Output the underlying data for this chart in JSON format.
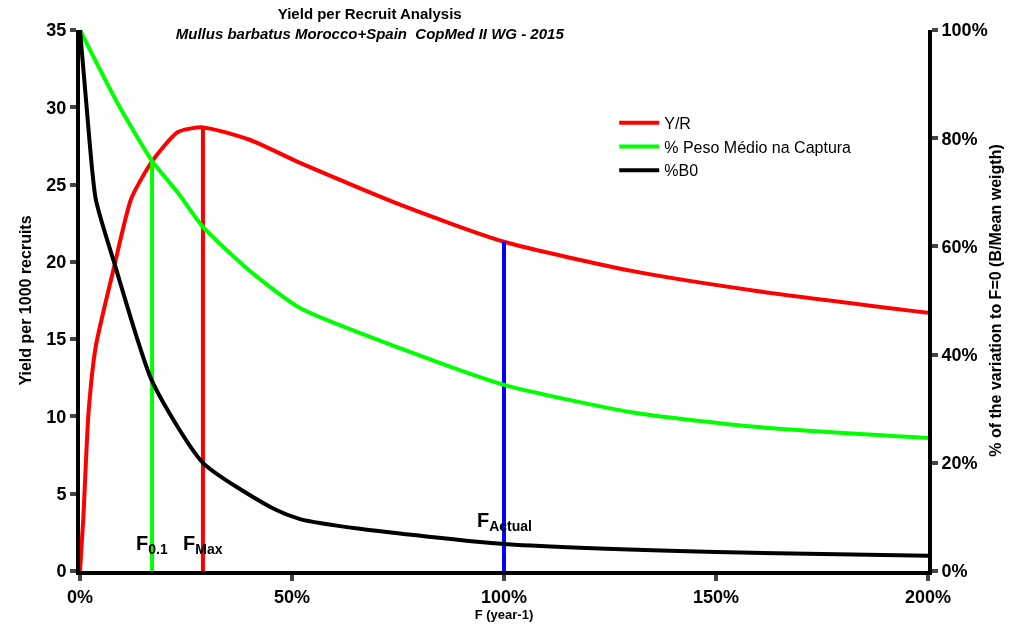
{
  "chart_data": {
    "type": "line",
    "title": "Yield per Recruit Analysis",
    "subtitle": "Mullus barbatus Morocco+Spain  CopMed II WG - 2015",
    "xlabel": "F (year-1)",
    "ylabel": "Yield per 1000 recruits",
    "y2label": "% of the variation to F=0 (B/Mean weigth)",
    "x": [
      0,
      0.0076,
      0.016,
      0.02,
      0.037,
      0.079,
      0.121,
      0.17,
      0.231,
      0.29,
      0.4,
      0.519,
      0.66,
      0.764,
      1.0,
      1.304,
      1.5,
      1.6,
      2.0
    ],
    "series": [
      {
        "name": "Y/R",
        "color": "#ff0000",
        "values": [
          0,
          3.3,
          null,
          10.2,
          14.5,
          19.5,
          24.1,
          26.5,
          28.4,
          28.7,
          27.9,
          26.4,
          null,
          23.6,
          21.3,
          19.4,
          null,
          18.1,
          16.7
        ]
      },
      {
        "name": "% Peso Médio na Captura",
        "color": "#00ff00",
        "axis": "y2",
        "x": [
          0,
          0.087,
          0.17,
          0.231,
          0.29,
          0.4,
          0.519,
          0.764,
          1.0,
          1.304,
          1.6,
          2.0
        ],
        "values": [
          100,
          86.7,
          75.8,
          69.9,
          63.6,
          55.5,
          48.6,
          40.9,
          34.4,
          29.3,
          26.6,
          24.6
        ]
      },
      {
        "name": "%B0",
        "color": "#000000",
        "axis": "y2",
        "x": [
          0,
          0.016,
          0.037,
          0.083,
          0.17,
          0.29,
          0.457,
          0.519,
          0.66,
          1.0,
          1.5,
          2.0
        ],
        "values": [
          100,
          85.4,
          68.8,
          56.4,
          35.1,
          20.0,
          11.5,
          9.6,
          7.8,
          5.0,
          3.5,
          2.8
        ]
      },
      {
        "color": "#00ff00",
        "x": [
          0.17,
          0.17
        ],
        "values": [
          0,
          26.5
        ]
      },
      {
        "color": "#ff0000",
        "x": [
          0.29,
          0.29
        ],
        "values": [
          0,
          28.7
        ]
      },
      {
        "color": "#0000ff",
        "x": [
          1.0,
          1.0
        ],
        "values": [
          0,
          21.3
        ]
      }
    ],
    "annotations": [
      {
        "text": "F$_{0.1}$",
        "x": 0.17,
        "y": 1.7
      },
      {
        "text": "F$_{Max}$",
        "x": 0.29,
        "y": 1.7
      },
      {
        "text": "F$_{Actual}$",
        "x": 1.0,
        "y": 3.2
      }
    ],
    "xlim": [
      0,
      2
    ],
    "xticks": [
      {
        "value": 0,
        "label": "0%"
      },
      {
        "value": 0.5,
        "label": "50%"
      },
      {
        "value": 1,
        "label": "100%"
      },
      {
        "value": 1.5,
        "label": "150%"
      },
      {
        "value": 2,
        "label": "200%"
      }
    ],
    "ylim": [
      0,
      35
    ],
    "yticks": [
      0,
      5,
      10,
      15,
      20,
      25,
      30,
      35
    ],
    "y2lim": [
      0,
      100
    ],
    "y2ticks": [
      {
        "value": 0,
        "label": "0%"
      },
      {
        "value": 20,
        "label": "20%"
      },
      {
        "value": 40,
        "label": "40%"
      },
      {
        "value": 60,
        "label": "60%"
      },
      {
        "value": 80,
        "label": "80%"
      },
      {
        "value": 100,
        "label": "100%"
      }
    ],
    "grid": false,
    "legend": "top right",
    "marker": "none",
    "line_style": "solid"
  }
}
